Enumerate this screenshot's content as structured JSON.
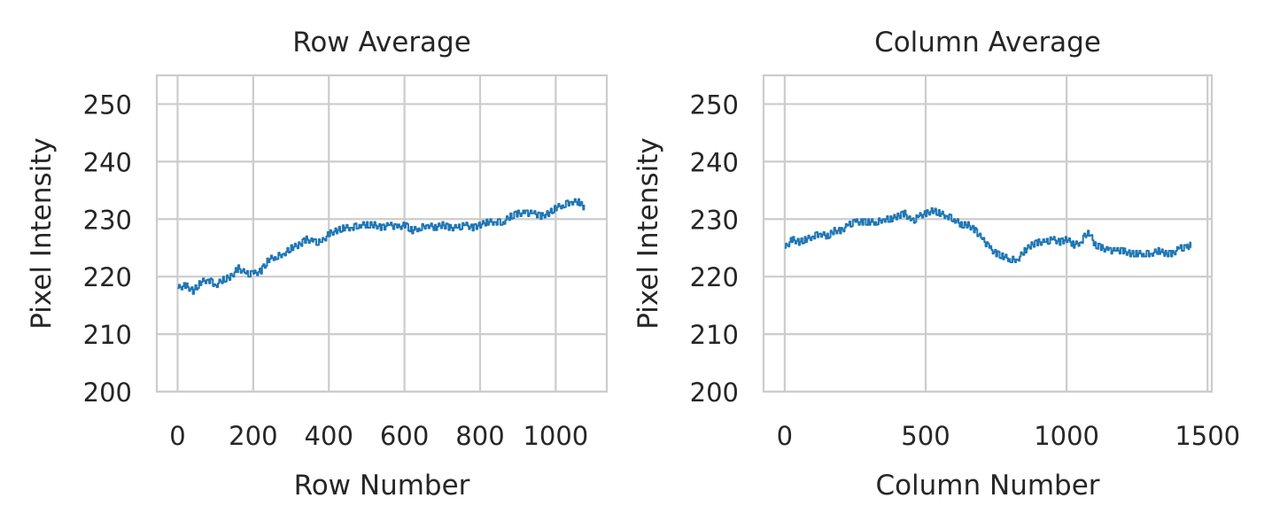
{
  "chart_data": [
    {
      "type": "line",
      "title": "Row Average",
      "xlabel": "Row Number",
      "ylabel": "Pixel Intensity",
      "xlim": [
        -55,
        1135
      ],
      "ylim": [
        200,
        255
      ],
      "xticks": [
        0,
        200,
        400,
        600,
        800,
        1000
      ],
      "xtick_labels": [
        "0",
        "200",
        "400",
        "600",
        "800",
        "1000"
      ],
      "yticks": [
        200,
        210,
        220,
        230,
        240,
        250
      ],
      "ytick_labels": [
        "200",
        "210",
        "220",
        "230",
        "240",
        "250"
      ],
      "grid": true,
      "series": [
        {
          "color": "#1f77b4",
          "x": [
            0,
            20,
            40,
            60,
            80,
            100,
            120,
            140,
            160,
            180,
            200,
            220,
            240,
            260,
            280,
            300,
            320,
            340,
            360,
            380,
            400,
            420,
            440,
            460,
            480,
            500,
            520,
            540,
            560,
            580,
            600,
            620,
            640,
            660,
            680,
            700,
            720,
            740,
            760,
            780,
            800,
            820,
            840,
            860,
            880,
            900,
            920,
            940,
            960,
            980,
            1000,
            1020,
            1040,
            1060,
            1075
          ],
          "y": [
            218,
            218.5,
            217.5,
            219,
            219.5,
            218.5,
            219.5,
            220,
            221.5,
            220.5,
            220.5,
            221,
            223,
            223.5,
            224,
            225,
            225.5,
            226.5,
            226,
            226,
            227.5,
            228,
            228.5,
            228.5,
            229,
            229,
            229,
            228.5,
            229,
            228.5,
            229,
            228,
            228.5,
            229,
            228.5,
            229,
            228.5,
            228.5,
            229,
            228.5,
            229,
            229.5,
            229.5,
            229.5,
            230.5,
            231,
            231,
            231,
            230.5,
            231,
            232,
            232.5,
            233,
            233,
            232
          ]
        }
      ]
    },
    {
      "type": "line",
      "title": "Column Average",
      "xlabel": "Column Number",
      "ylabel": "Pixel Intensity",
      "xlim": [
        -75,
        1515
      ],
      "ylim": [
        200,
        255
      ],
      "xticks": [
        0,
        500,
        1000,
        1500
      ],
      "xtick_labels": [
        "0",
        "500",
        "1000",
        "1500"
      ],
      "yticks": [
        200,
        210,
        220,
        230,
        240,
        250
      ],
      "ytick_labels": [
        "200",
        "210",
        "220",
        "230",
        "240",
        "250"
      ],
      "grid": true,
      "series": [
        {
          "color": "#1f77b4",
          "x": [
            0,
            25,
            50,
            75,
            100,
            125,
            150,
            175,
            200,
            225,
            250,
            275,
            300,
            325,
            350,
            375,
            400,
            425,
            450,
            475,
            500,
            525,
            550,
            575,
            600,
            625,
            650,
            675,
            700,
            725,
            750,
            775,
            800,
            825,
            850,
            875,
            900,
            925,
            950,
            975,
            1000,
            1025,
            1050,
            1075,
            1100,
            1125,
            1150,
            1175,
            1200,
            1225,
            1250,
            1275,
            1300,
            1325,
            1350,
            1375,
            1400,
            1425,
            1440
          ],
          "y": [
            225,
            226.5,
            226,
            226.5,
            227,
            227.5,
            227,
            228,
            228,
            229,
            229.5,
            229.5,
            229.5,
            229.5,
            230,
            230,
            230.5,
            231,
            229.5,
            230.5,
            231,
            231.5,
            231,
            230.5,
            230,
            229,
            229,
            228,
            226.5,
            225,
            224,
            223.5,
            223,
            223,
            224.5,
            225.5,
            226,
            226,
            226.5,
            226,
            226.5,
            225.5,
            226,
            228,
            225.5,
            225,
            224.5,
            224.5,
            224.5,
            224,
            224,
            224,
            224,
            224.5,
            224,
            224,
            225,
            225,
            225.5
          ]
        }
      ]
    }
  ]
}
